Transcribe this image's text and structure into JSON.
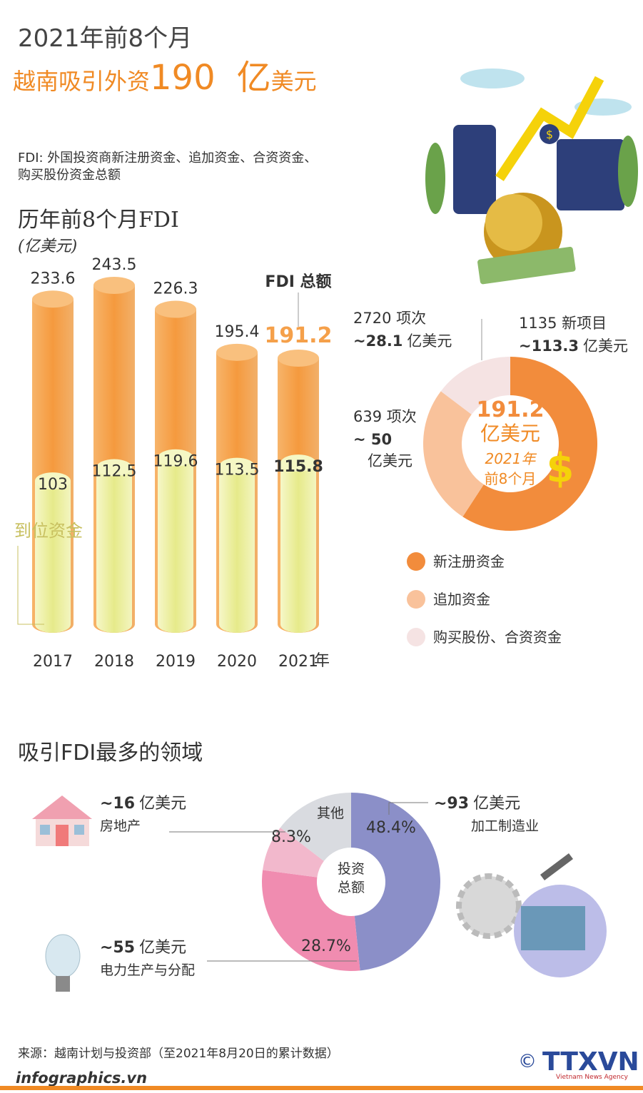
{
  "header": {
    "line1": "2021年前8个月",
    "lead": "越南吸引外资",
    "amount": 190,
    "unit_big": "亿",
    "unit_small": "美元"
  },
  "note": [
    "FDI: 外国投资商新注册资金、追加资金、合资资金、",
    "购买股份资金总额"
  ],
  "chart_data": [
    {
      "type": "cylinder",
      "title": "历年前8个月FDI",
      "subtitle": "(亿美元)",
      "categories": [
        "2017",
        "2018",
        "2019",
        "2020",
        "2021"
      ],
      "x_unit": "年",
      "series": [
        {
          "name": "FDI 总额",
          "color": "#f5a04a",
          "values": [
            233.6,
            243.5,
            226.3,
            195.4,
            191.2
          ]
        },
        {
          "name": "到位资金",
          "color": "#eef0a4",
          "values": [
            103,
            112.5,
            119.6,
            113.5,
            115.8
          ]
        }
      ]
    },
    {
      "type": "donut",
      "total": 191.2,
      "center_labels": [
        "亿美元",
        "2021年",
        "前8个月"
      ],
      "categories": [
        "新注册资金",
        "追加资金",
        "购买股份、合资资金"
      ],
      "values": [
        113.3,
        50,
        28.1
      ],
      "value_labels": [
        "~113.3",
        "~ 50",
        "~28.1"
      ],
      "unit": "亿美元",
      "count_labels": [
        "1135 新项目",
        "639 项次",
        "2720 项次"
      ],
      "colors": [
        "#f28c3c",
        "#f9c29b",
        "#f5e3e3"
      ]
    },
    {
      "type": "donut",
      "title": "吸引FDI最多的领域",
      "center_labels": [
        "投资",
        "总额"
      ],
      "categories": [
        "加工制造业",
        "电力生产与分配",
        "房地产",
        "其他"
      ],
      "values": [
        48.4,
        28.7,
        8.3,
        14.6
      ],
      "value_labels": [
        "48.4%",
        "28.7%",
        "8.3%",
        null
      ],
      "amounts": [
        93,
        55,
        16,
        null
      ],
      "amount_labels": [
        "~93",
        "~55",
        "~16",
        null
      ],
      "unit": "亿美元",
      "colors": [
        "#8b8fc8",
        "#f08cb0",
        "#f2b8cc",
        "#d9dbe0"
      ]
    }
  ],
  "footer": {
    "source": "来源：越南计划与投资部（至2021年8月20日的累计数据）",
    "site": "infographics.vn",
    "copyright": "©",
    "logo": "TTXVN",
    "agency": "Vietnam News Agency"
  }
}
